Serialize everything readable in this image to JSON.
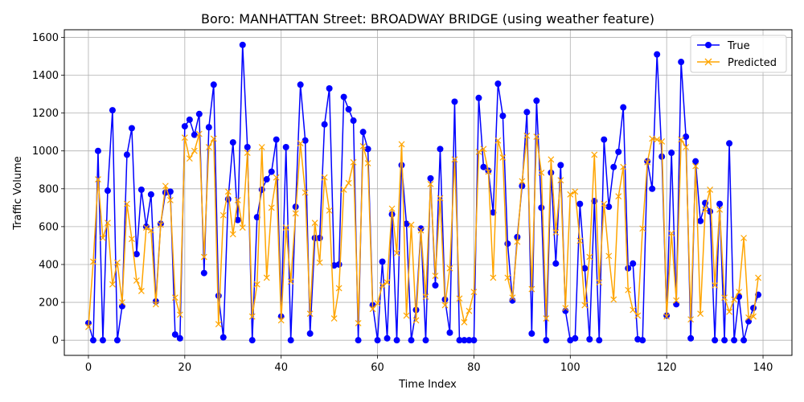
{
  "chart_data": {
    "type": "line",
    "title": "Boro: MANHATTAN Street: BROADWAY BRIDGE (using weather feature)",
    "xlabel": "Time Index",
    "ylabel": "Traffic Volume",
    "xlim": [
      -5,
      146
    ],
    "ylim": [
      -80,
      1640
    ],
    "x_ticks": [
      0,
      20,
      40,
      60,
      80,
      100,
      120,
      140
    ],
    "y_ticks": [
      0,
      200,
      400,
      600,
      800,
      1000,
      1200,
      1400,
      1600
    ],
    "grid": true,
    "legend_position": "top-right",
    "series": [
      {
        "name": "True",
        "color": "#0000ff",
        "marker": "circle",
        "values": [
          90,
          0,
          1000,
          0,
          790,
          1215,
          0,
          180,
          980,
          1120,
          455,
          795,
          600,
          770,
          205,
          615,
          780,
          785,
          30,
          10,
          1130,
          1165,
          1085,
          1195,
          355,
          1125,
          1350,
          235,
          15,
          745,
          1045,
          635,
          1560,
          1020,
          0,
          650,
          795,
          850,
          890,
          1060,
          125,
          1020,
          0,
          705,
          1350,
          1055,
          35,
          540,
          540,
          1140,
          1330,
          395,
          400,
          1285,
          1220,
          1160,
          0,
          1100,
          1010,
          185,
          0,
          415,
          10,
          665,
          0,
          925,
          615,
          0,
          160,
          590,
          0,
          855,
          290,
          1010,
          215,
          40,
          1260,
          0,
          0,
          0,
          0,
          1280,
          915,
          895,
          675,
          1355,
          1185,
          510,
          210,
          545,
          815,
          1205,
          35,
          1265,
          700,
          0,
          885,
          405,
          925,
          155,
          0,
          10,
          720,
          380,
          5,
          735,
          0,
          1060,
          705,
          915,
          995,
          1230,
          380,
          405,
          5,
          0,
          945,
          800,
          1510,
          970,
          130,
          990,
          190,
          1470,
          1075,
          10,
          945,
          630,
          725,
          680,
          0,
          720,
          0,
          1040,
          0,
          230,
          0,
          100,
          170,
          240
        ]
      },
      {
        "name": "Predicted",
        "color": "#ffa500",
        "marker": "x",
        "values": [
          70,
          415,
          850,
          540,
          620,
          295,
          410,
          200,
          720,
          535,
          315,
          260,
          595,
          580,
          190,
          610,
          815,
          740,
          225,
          135,
          1070,
          960,
          1000,
          1090,
          440,
          1020,
          1065,
          85,
          660,
          785,
          560,
          740,
          595,
          990,
          125,
          295,
          1020,
          330,
          700,
          860,
          105,
          595,
          310,
          670,
          1040,
          780,
          140,
          620,
          410,
          860,
          685,
          115,
          275,
          795,
          830,
          940,
          90,
          1025,
          935,
          165,
          195,
          290,
          305,
          695,
          460,
          1035,
          130,
          610,
          105,
          580,
          230,
          825,
          340,
          750,
          185,
          380,
          955,
          220,
          95,
          155,
          255,
          995,
          1010,
          890,
          330,
          1055,
          965,
          330,
          225,
          520,
          840,
          1080,
          270,
          1075,
          885,
          115,
          955,
          570,
          845,
          170,
          770,
          785,
          525,
          185,
          440,
          980,
          305,
          720,
          445,
          215,
          760,
          915,
          265,
          160,
          130,
          590,
          940,
          1065,
          1060,
          1050,
          125,
          565,
          210,
          1060,
          1020,
          110,
          920,
          140,
          690,
          795,
          290,
          690,
          225,
          150,
          215,
          255,
          540,
          120,
          125,
          330
        ]
      }
    ]
  }
}
